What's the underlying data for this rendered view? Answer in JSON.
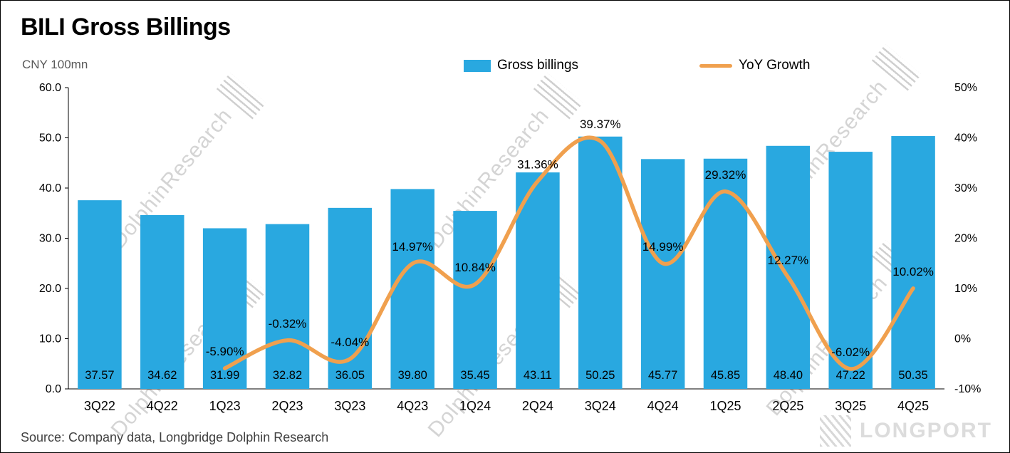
{
  "header": {
    "title": "BILI Gross Billings",
    "unit": "CNY 100mn"
  },
  "legend": {
    "items": [
      {
        "label": "Gross billings"
      },
      {
        "label": "YoY Growth"
      }
    ]
  },
  "chart_data": {
    "type": "bar",
    "title": "BILI Gross Billings",
    "unit": "CNY 100mn",
    "categories": [
      "3Q22",
      "4Q22",
      "1Q23",
      "2Q23",
      "3Q23",
      "4Q23",
      "1Q24",
      "2Q24",
      "3Q24",
      "4Q24",
      "1Q25",
      "2Q25",
      "3Q25",
      "4Q25"
    ],
    "series": [
      {
        "name": "Gross billings",
        "type": "bar",
        "axis": "left",
        "color": "#29A8E0",
        "values": [
          37.57,
          34.62,
          31.99,
          32.82,
          36.05,
          39.8,
          35.45,
          43.11,
          50.25,
          45.77,
          45.85,
          48.4,
          47.22,
          50.35
        ],
        "labels": [
          "37.57",
          "34.62",
          "31.99",
          "32.82",
          "36.05",
          "39.80",
          "35.45",
          "43.11",
          "50.25",
          "45.77",
          "45.85",
          "48.40",
          "47.22",
          "50.35"
        ]
      },
      {
        "name": "YoY Growth",
        "type": "line",
        "axis": "right",
        "color": "#F0A04E",
        "values": [
          null,
          null,
          -5.9,
          -0.32,
          -4.04,
          14.97,
          10.84,
          31.36,
          39.37,
          14.99,
          29.32,
          12.27,
          -6.02,
          10.02
        ],
        "labels": [
          null,
          null,
          "-5.90%",
          "-0.32%",
          "-4.04%",
          "14.97%",
          "10.84%",
          "31.36%",
          "39.37%",
          "14.99%",
          "29.32%",
          "12.27%",
          "-6.02%",
          "10.02%"
        ]
      }
    ],
    "left_axis": {
      "min": 0,
      "max": 60,
      "tick_labels": [
        "60.0",
        "50.0",
        "40.0",
        "30.0",
        "20.0",
        "10.0",
        "0.0"
      ]
    },
    "right_axis": {
      "min": -10,
      "max": 50,
      "tick_labels": [
        "50%",
        "40%",
        "30%",
        "20%",
        "10%",
        "0%",
        "-10%"
      ]
    },
    "grid": false,
    "legend_position": "top"
  },
  "watermark": {
    "text": "DolphinResearch"
  },
  "footer": {
    "source": "Source: Company data, Longbridge Dolphin Research",
    "logo_text": "LONGPORT"
  }
}
